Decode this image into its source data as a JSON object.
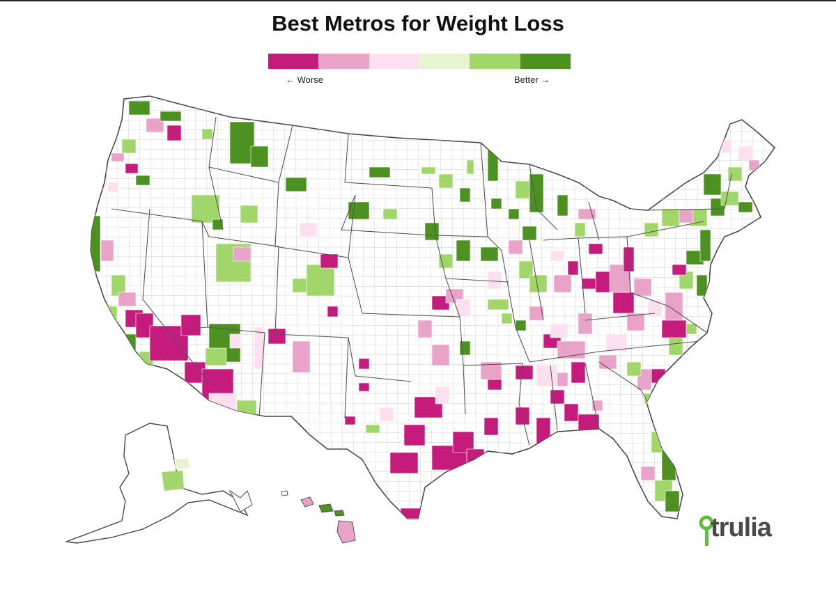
{
  "title": "Best Metros for Weight Loss",
  "legend": {
    "colors": [
      "#c51b7d",
      "#e9a3c9",
      "#fde0ef",
      "#e6f5d0",
      "#a1d76a",
      "#4d9221"
    ],
    "worse_label": "← Worse",
    "better_label": "Better →"
  },
  "map": {
    "regions": [
      "contiguous-us",
      "alaska",
      "hawaii"
    ]
  },
  "brand": {
    "name": "trulia",
    "accent": "#5bbf3e",
    "text_color": "#4a4a4a",
    "icon": "location-pin-icon"
  }
}
